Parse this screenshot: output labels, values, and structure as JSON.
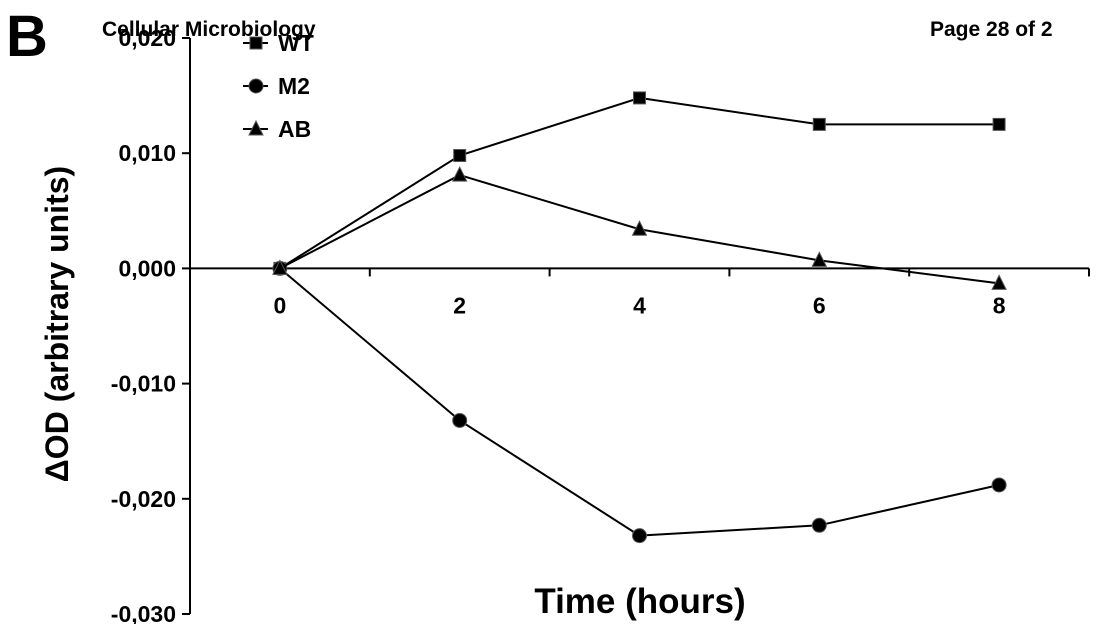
{
  "panel_letter": "B",
  "header": {
    "journal": "Cellular Microbiology",
    "page": "Page 28 of 2"
  },
  "colors": {
    "line": "#000000",
    "marker_fill": "#000000",
    "background": "#ffffff"
  },
  "chart_data": {
    "type": "line",
    "title": "",
    "xlabel": "Time (hours)",
    "ylabel": "ΔOD (arbitrary units)",
    "x": [
      0,
      2,
      4,
      6,
      8
    ],
    "x_tick_labels": [
      "0",
      "2",
      "4",
      "6",
      "8"
    ],
    "xlim": [
      -1,
      9
    ],
    "ylim": [
      -0.03,
      0.02
    ],
    "y_ticks": [
      0.02,
      0.01,
      0.0,
      -0.01,
      -0.02,
      -0.03
    ],
    "y_tick_labels": [
      "0,020",
      "0,010",
      "0,000",
      "-0,010",
      "-0,020",
      "-0,030"
    ],
    "grid": false,
    "legend_position": "top-left",
    "series": [
      {
        "name": "WT",
        "marker": "square",
        "values": [
          0.0,
          0.0098,
          0.0148,
          0.0125,
          0.0125
        ]
      },
      {
        "name": "M2",
        "marker": "circle",
        "values": [
          0.0,
          -0.0132,
          -0.0232,
          -0.0223,
          -0.0188
        ]
      },
      {
        "name": "AB",
        "marker": "triangle",
        "values": [
          0.0,
          0.0081,
          0.0034,
          0.0007,
          -0.0013
        ]
      }
    ]
  }
}
